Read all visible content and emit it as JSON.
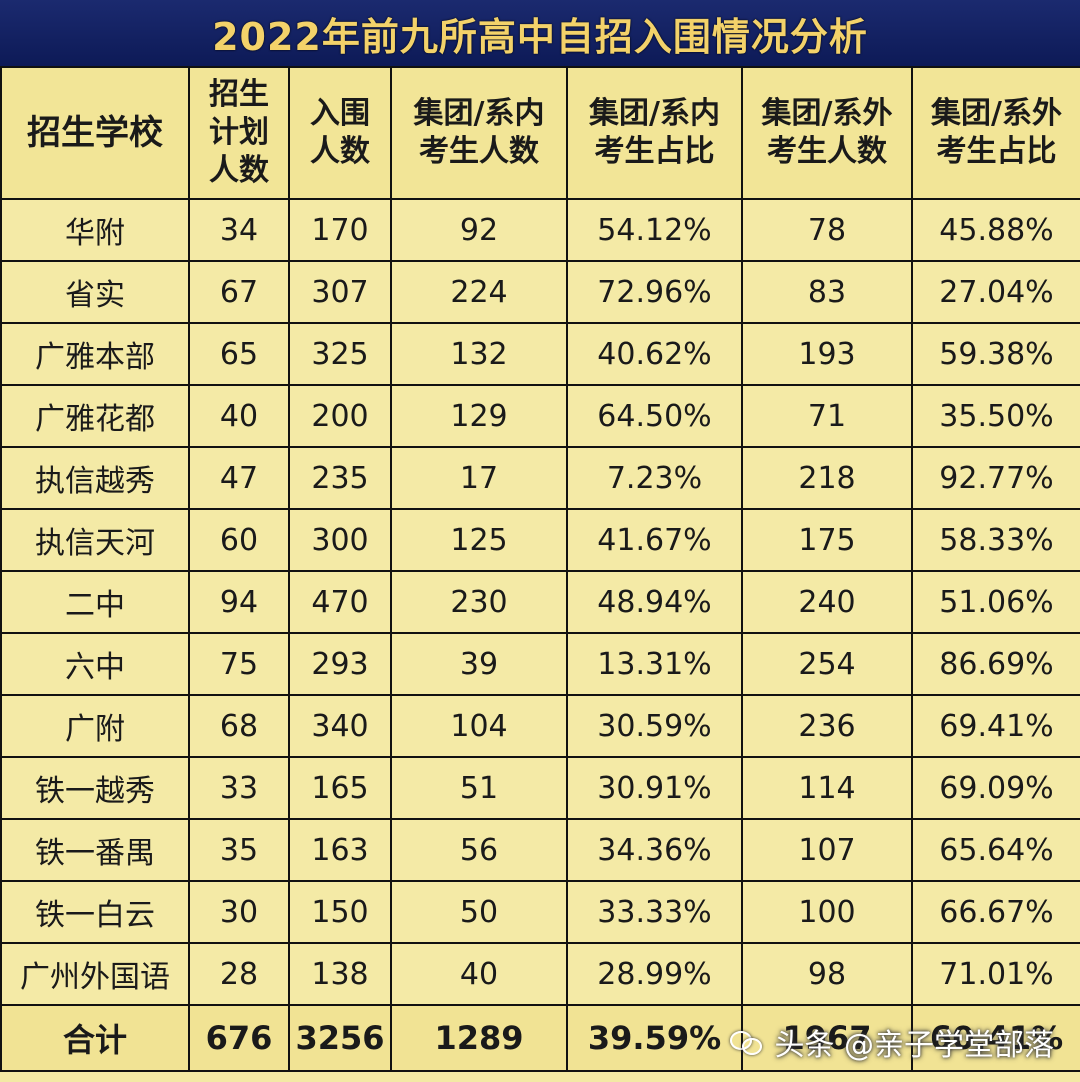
{
  "title": "2022年前九所高中自招入围情况分析",
  "headers": [
    "招生学校",
    "招生计划人数",
    "入围人数",
    "集团/系内考生人数",
    "集团/系内考生占比",
    "集团/系外考生人数",
    "集团/系外考生占比"
  ],
  "rows": [
    [
      "华附",
      "34",
      "170",
      "92",
      "54.12%",
      "78",
      "45.88%"
    ],
    [
      "省实",
      "67",
      "307",
      "224",
      "72.96%",
      "83",
      "27.04%"
    ],
    [
      "广雅本部",
      "65",
      "325",
      "132",
      "40.62%",
      "193",
      "59.38%"
    ],
    [
      "广雅花都",
      "40",
      "200",
      "129",
      "64.50%",
      "71",
      "35.50%"
    ],
    [
      "执信越秀",
      "47",
      "235",
      "17",
      "7.23%",
      "218",
      "92.77%"
    ],
    [
      "执信天河",
      "60",
      "300",
      "125",
      "41.67%",
      "175",
      "58.33%"
    ],
    [
      "二中",
      "94",
      "470",
      "230",
      "48.94%",
      "240",
      "51.06%"
    ],
    [
      "六中",
      "75",
      "293",
      "39",
      "13.31%",
      "254",
      "86.69%"
    ],
    [
      "广附",
      "68",
      "340",
      "104",
      "30.59%",
      "236",
      "69.41%"
    ],
    [
      "铁一越秀",
      "33",
      "165",
      "51",
      "30.91%",
      "114",
      "69.09%"
    ],
    [
      "铁一番禺",
      "35",
      "163",
      "56",
      "34.36%",
      "107",
      "65.64%"
    ],
    [
      "铁一白云",
      "30",
      "150",
      "50",
      "33.33%",
      "100",
      "66.67%"
    ],
    [
      "广州外国语",
      "28",
      "138",
      "40",
      "28.99%",
      "98",
      "71.01%"
    ]
  ],
  "total": [
    "合计",
    "676",
    "3256",
    "1289",
    "39.59%",
    "1967",
    "60.41%"
  ],
  "watermark": {
    "text": "头条 @亲子学堂部落",
    "icon": "wechat-icon"
  }
}
